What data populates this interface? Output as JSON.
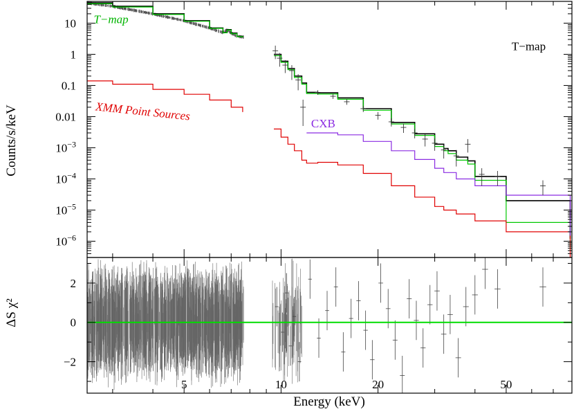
{
  "chart_data": [
    {
      "type": "line",
      "panel": "spectrum",
      "ylabel": "Counts/s/keV",
      "yscale": "log",
      "xscale": "log",
      "xlim": [
        2.5,
        80
      ],
      "ylim": [
        3e-07,
        50
      ],
      "y_ticks": [
        {
          "value": 10,
          "label": "10"
        },
        {
          "value": 1,
          "label": "1"
        },
        {
          "value": 0.1,
          "label": "0.1"
        },
        {
          "value": 0.01,
          "label": "0.01"
        },
        {
          "value": 0.001,
          "mantissa": "10",
          "exponent": "−3"
        },
        {
          "value": 0.0001,
          "mantissa": "10",
          "exponent": "−4"
        },
        {
          "value": 1e-05,
          "mantissa": "10",
          "exponent": "−5"
        },
        {
          "value": 1e-06,
          "mantissa": "10",
          "exponent": "−6"
        }
      ],
      "annotations": [
        {
          "text": "T−map",
          "color": "#00b400",
          "x": 2.62,
          "y": 10
        },
        {
          "text": "T−map",
          "color": "#000000",
          "x": 52,
          "y": 1.35
        },
        {
          "text": "XMM Point Sources",
          "color": "#e00000",
          "x": 2.65,
          "y": 0.016
        },
        {
          "text": "CXB",
          "color": "#8a2be2",
          "x": 12.4,
          "y": 0.0045
        }
      ],
      "series": [
        {
          "color": "#000000",
          "segments": [
            {
              "x": [
                2.5,
                3,
                4,
                5,
                6,
                6.6,
                6.8,
                7.0,
                7.3,
                7.6
              ],
              "y": [
                45,
                35,
                20,
                12,
                7,
                5,
                6.2,
                4.8,
                3.8,
                3.6
              ]
            },
            {
              "x": [
                9.5,
                10,
                10.5,
                11,
                11.6,
                12,
                13,
                15,
                18,
                22,
                26,
                30,
                32,
                33,
                35,
                38,
                40,
                50,
                60,
                70,
                79
              ],
              "y": [
                1.0,
                0.6,
                0.35,
                0.2,
                0.12,
                0.06,
                0.058,
                0.04,
                0.018,
                0.0065,
                0.0028,
                0.0013,
                0.00095,
                0.0008,
                0.0005,
                0.00038,
                0.00012,
                2e-05,
                2e-05,
                2e-05,
                1.2e-06
              ]
            }
          ]
        },
        {
          "color": "#00c800",
          "segments": [
            {
              "x": [
                2.5,
                3,
                4,
                5,
                6,
                6.6,
                6.8,
                7.0,
                7.3,
                7.6
              ],
              "y": [
                42,
                33,
                19,
                11.5,
                6.8,
                4.9,
                6.0,
                4.6,
                3.7,
                3.5
              ]
            },
            {
              "x": [
                9.5,
                10,
                10.5,
                11,
                11.6,
                12,
                13,
                15,
                18,
                22,
                26,
                30,
                32,
                33,
                35,
                38,
                40,
                50,
                60,
                70,
                79
              ],
              "y": [
                0.9,
                0.55,
                0.32,
                0.18,
                0.11,
                0.055,
                0.053,
                0.036,
                0.016,
                0.0058,
                0.0025,
                0.0011,
                0.0008,
                0.00065,
                0.0004,
                0.0003,
                9e-05,
                4e-06,
                4e-06,
                4e-06,
                5e-07
              ]
            }
          ]
        },
        {
          "color": "#e00000",
          "segments": [
            {
              "x": [
                2.5,
                3,
                4,
                5,
                6,
                7,
                7.6
              ],
              "y": [
                0.14,
                0.11,
                0.075,
                0.052,
                0.034,
                0.02,
                0.014
              ]
            },
            {
              "x": [
                9.5,
                10,
                10.5,
                11,
                11.6,
                12,
                13,
                15,
                18,
                22,
                26,
                30,
                32,
                35,
                40,
                50,
                60,
                70,
                79
              ],
              "y": [
                0.004,
                0.0022,
                0.0013,
                0.0008,
                0.0004,
                0.00032,
                0.00034,
                0.00028,
                0.00015,
                6e-05,
                2.6e-05,
                1.3e-05,
                1e-05,
                7.5e-06,
                4.5e-06,
                2e-06,
                2e-06,
                2e-06,
                1e-07
              ]
            }
          ]
        },
        {
          "color": "#8a2be2",
          "segments": [
            {
              "x": [
                12,
                13,
                15,
                18,
                22,
                26,
                30,
                32,
                35,
                40,
                50,
                60,
                70,
                79
              ],
              "y": [
                0.003,
                0.003,
                0.0026,
                0.0016,
                0.0008,
                0.00042,
                0.00022,
                0.00016,
                0.0001,
                6e-05,
                3e-05,
                3e-05,
                3e-05,
                1.5e-06
              ]
            }
          ]
        }
      ],
      "data_points": [
        {
          "x": 9.6,
          "y": 1.3,
          "yerr": 0.6
        },
        {
          "x": 9.9,
          "y": 0.75,
          "yerr": 0.35
        },
        {
          "x": 10.3,
          "y": 0.45,
          "yerr": 0.2
        },
        {
          "x": 10.8,
          "y": 0.3,
          "yerr": 0.15
        },
        {
          "x": 11.3,
          "y": 0.15,
          "yerr": 0.08
        },
        {
          "x": 11.7,
          "y": 0.02,
          "yerr": 0.015
        },
        {
          "x": 13,
          "y": 0.06,
          "yerr": 0.01
        },
        {
          "x": 14.5,
          "y": 0.045,
          "yerr": 0.008
        },
        {
          "x": 16,
          "y": 0.03,
          "yerr": 0.006
        },
        {
          "x": 18,
          "y": 0.018,
          "yerr": 0.004
        },
        {
          "x": 20,
          "y": 0.011,
          "yerr": 0.003
        },
        {
          "x": 22,
          "y": 0.0068,
          "yerr": 0.002
        },
        {
          "x": 24,
          "y": 0.0045,
          "yerr": 0.0015
        },
        {
          "x": 26,
          "y": 0.003,
          "yerr": 0.001
        },
        {
          "x": 28,
          "y": 0.0019,
          "yerr": 0.0008
        },
        {
          "x": 30,
          "y": 0.0014,
          "yerr": 0.0006
        },
        {
          "x": 32,
          "y": 0.00085,
          "yerr": 0.0004
        },
        {
          "x": 35,
          "y": 0.00055,
          "yerr": 0.0003
        },
        {
          "x": 38,
          "y": 0.0013,
          "yerr": 0.0006
        },
        {
          "x": 42,
          "y": 0.00014,
          "yerr": 8e-05
        },
        {
          "x": 47,
          "y": 0.00012,
          "yerr": 6e-05
        },
        {
          "x": 65,
          "y": 6e-05,
          "yerr": 3e-05
        }
      ]
    },
    {
      "type": "scatter",
      "panel": "residuals",
      "xlabel": "Energy (keV)",
      "ylabel": "ΔS χ²",
      "xscale": "log",
      "xlim": [
        2.5,
        80
      ],
      "ylim": [
        -3.6,
        3.3
      ],
      "x_ticks": [
        {
          "value": 5,
          "label": "5"
        },
        {
          "value": 10,
          "label": "10"
        },
        {
          "value": 20,
          "label": "20"
        },
        {
          "value": 50,
          "label": "50"
        }
      ],
      "y_ticks": [
        {
          "value": 2,
          "label": "2"
        },
        {
          "value": 0,
          "label": "0"
        },
        {
          "value": -2,
          "label": "−2"
        }
      ],
      "zero_line_color": "#00dd00",
      "points": [
        {
          "x": 9.7,
          "y": 0.8
        },
        {
          "x": 10.1,
          "y": -0.5
        },
        {
          "x": 10.4,
          "y": 1.5
        },
        {
          "x": 10.7,
          "y": -1.2
        },
        {
          "x": 11.0,
          "y": 0.3
        },
        {
          "x": 11.4,
          "y": -2.0
        },
        {
          "x": 12.3,
          "y": 2.2
        },
        {
          "x": 13.1,
          "y": -0.8
        },
        {
          "x": 13.9,
          "y": 0.6
        },
        {
          "x": 14.8,
          "y": 1.8
        },
        {
          "x": 15.6,
          "y": -1.5
        },
        {
          "x": 16.5,
          "y": 0.2
        },
        {
          "x": 17.4,
          "y": 1.1
        },
        {
          "x": 18.3,
          "y": -0.4
        },
        {
          "x": 19.2,
          "y": -1.9
        },
        {
          "x": 20.4,
          "y": 2.0
        },
        {
          "x": 21.5,
          "y": 0.7
        },
        {
          "x": 22.6,
          "y": -0.9
        },
        {
          "x": 23.8,
          "y": -2.7
        },
        {
          "x": 25.0,
          "y": 1.2
        },
        {
          "x": 26.3,
          "y": 0.1
        },
        {
          "x": 27.6,
          "y": -1.3
        },
        {
          "x": 29.0,
          "y": 0.9
        },
        {
          "x": 30.5,
          "y": 1.6
        },
        {
          "x": 32.0,
          "y": -0.6
        },
        {
          "x": 33.5,
          "y": 0.4
        },
        {
          "x": 35.5,
          "y": -1.8
        },
        {
          "x": 37.5,
          "y": 0.8
        },
        {
          "x": 40.0,
          "y": 1.4
        },
        {
          "x": 43.0,
          "y": 2.7
        },
        {
          "x": 47.0,
          "y": 1.7
        },
        {
          "x": 65.0,
          "y": 1.8
        }
      ]
    }
  ]
}
